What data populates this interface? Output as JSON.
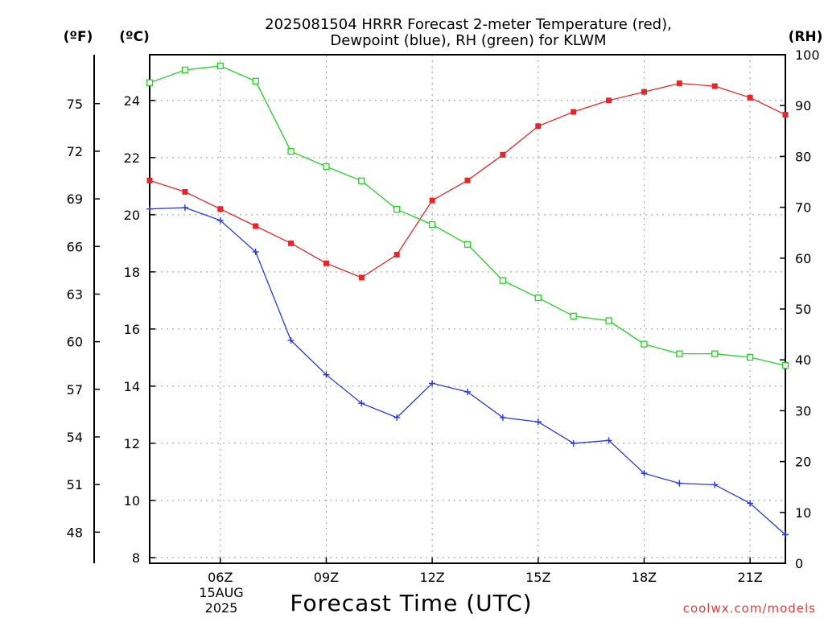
{
  "chart_data": {
    "type": "line",
    "title_line1": "2025081504 HRRR Forecast 2-meter Temperature (red),",
    "title_line2": "Dewpoint (blue), RH (green) for KLWM",
    "xlabel": "Forecast Time (UTC)",
    "ylabel_left_outer": "(ºF)",
    "ylabel_left_inner": "(ºC)",
    "ylabel_right": "(RH)",
    "watermark": "coolwx.com/models",
    "x_range": [
      4,
      22
    ],
    "x_ticks": [
      {
        "hour": 6,
        "label": "06Z"
      },
      {
        "hour": 9,
        "label": "09Z"
      },
      {
        "hour": 12,
        "label": "12Z"
      },
      {
        "hour": 15,
        "label": "15Z"
      },
      {
        "hour": 18,
        "label": "18Z"
      },
      {
        "hour": 21,
        "label": "21Z"
      }
    ],
    "date_label_line1": "15AUG",
    "date_label_line2": "2025",
    "y_celsius_range": [
      7.8,
      25.6
    ],
    "y_celsius_ticks": [
      "8",
      "10",
      "12",
      "14",
      "16",
      "18",
      "20",
      "22",
      "24"
    ],
    "y_fahrenheit_ticks": [
      "48",
      "51",
      "54",
      "57",
      "60",
      "63",
      "66",
      "69",
      "72",
      "75"
    ],
    "y_rh_range": [
      0,
      100
    ],
    "y_rh_ticks": [
      "0",
      "10",
      "20",
      "30",
      "40",
      "50",
      "60",
      "70",
      "80",
      "90",
      "100"
    ],
    "grid": true,
    "x": [
      4,
      5,
      6,
      7,
      8,
      9,
      10,
      11,
      12,
      13,
      14,
      15,
      16,
      17,
      18,
      19,
      20,
      21,
      22
    ],
    "series": [
      {
        "axis": "celsius",
        "marker": "square-filled",
        "color": "#e8262a",
        "values": [
          21.2,
          20.8,
          20.2,
          19.6,
          19.0,
          18.3,
          17.8,
          18.6,
          20.5,
          21.2,
          22.1,
          23.1,
          23.6,
          24.0,
          24.3,
          24.6,
          24.5,
          24.1,
          23.5
        ]
      },
      {
        "axis": "celsius",
        "marker": "plus",
        "color": "#2837e2",
        "values": [
          20.2,
          20.25,
          19.8,
          18.7,
          15.6,
          14.4,
          13.4,
          12.9,
          14.1,
          13.8,
          12.9,
          12.75,
          12.0,
          12.1,
          10.95,
          10.6,
          10.55,
          9.9,
          8.8
        ]
      },
      {
        "axis": "rh",
        "marker": "square-open",
        "color": "#22d322",
        "values": [
          94.5,
          97.0,
          97.8,
          94.8,
          81.0,
          78.0,
          75.2,
          69.6,
          66.6,
          62.7,
          55.6,
          52.2,
          48.6,
          47.7,
          43.1,
          41.2,
          41.2,
          40.5,
          38.9
        ]
      }
    ]
  }
}
